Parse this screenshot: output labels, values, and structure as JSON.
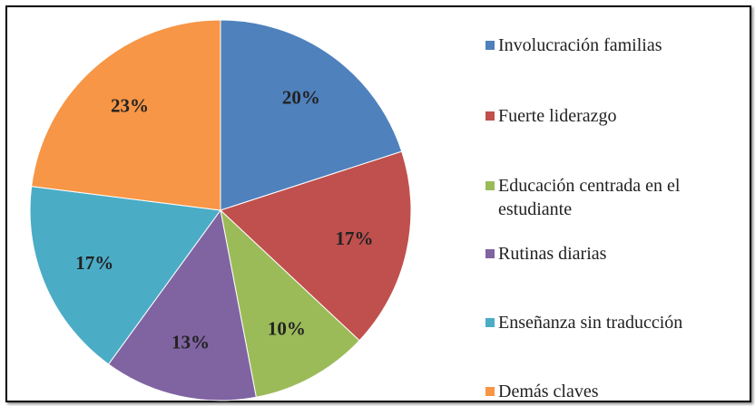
{
  "chart_data": {
    "type": "pie",
    "categories": [
      "Involucración familias",
      "Fuerte liderazgo",
      "Educación centrada en el estudiante",
      "Rutinas diarias",
      "Enseñanza sin traducción",
      "Demás claves"
    ],
    "values": [
      20,
      17,
      10,
      13,
      17,
      23
    ],
    "value_labels": [
      "20%",
      "17%",
      "10%",
      "13%",
      "17%",
      "23%"
    ],
    "colors": [
      "#4f81bd",
      "#c0504d",
      "#9bbb59",
      "#8064a2",
      "#4bacc6",
      "#f79646"
    ],
    "legend": "right"
  }
}
